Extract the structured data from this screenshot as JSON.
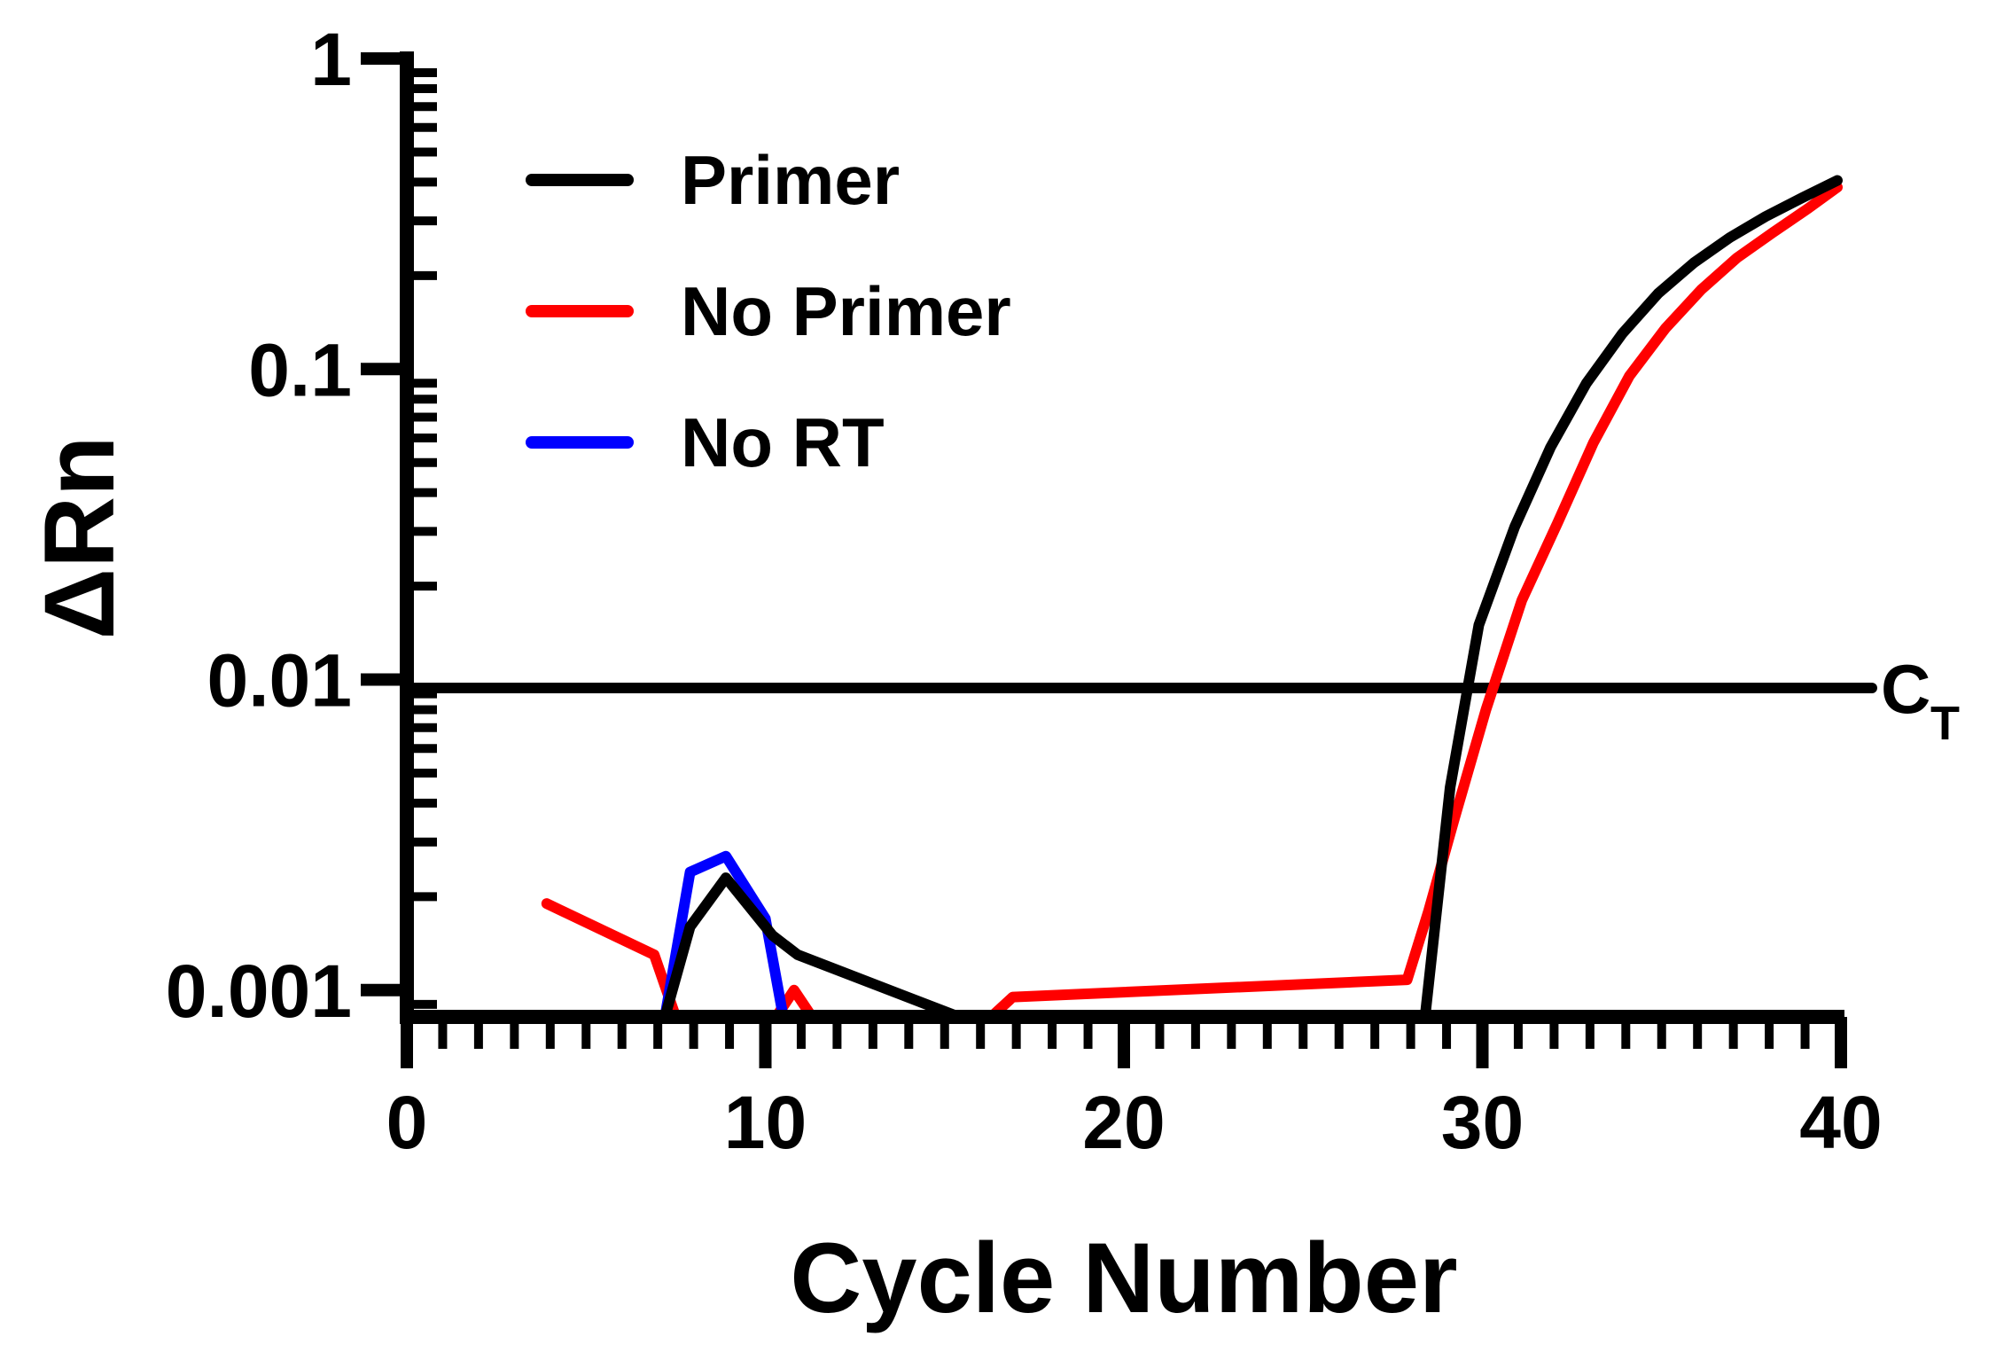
{
  "chart_data": {
    "type": "line",
    "title": "",
    "xlabel": "Cycle Number",
    "ylabel": "ΔRn",
    "x_scale": "linear",
    "y_scale": "log",
    "xlim": [
      0,
      40
    ],
    "ylim": [
      0.00082,
      1
    ],
    "x_ticks": [
      0,
      10,
      20,
      30,
      40
    ],
    "x_tick_labels": [
      "0",
      "10",
      "20",
      "30",
      "40"
    ],
    "y_ticks": [
      0.001,
      0.01,
      0.1,
      1
    ],
    "y_tick_labels": [
      "0.001",
      "0.01",
      "0.1",
      "1"
    ],
    "grid": false,
    "legend_position": "top-left",
    "series": [
      {
        "name": "Primer",
        "color": "#000000",
        "points": [
          [
            7.2,
            0.00082
          ],
          [
            7.9,
            0.0016
          ],
          [
            8.9,
            0.0023
          ],
          [
            10.2,
            0.0015
          ],
          [
            10.9,
            0.0013
          ],
          [
            15.4,
            0.00082
          ],
          [
            28.4,
            0.00082
          ],
          [
            29.1,
            0.0045
          ],
          [
            29.9,
            0.015
          ],
          [
            30.9,
            0.031
          ],
          [
            31.9,
            0.056
          ],
          [
            32.9,
            0.09
          ],
          [
            33.9,
            0.13
          ],
          [
            34.9,
            0.175
          ],
          [
            35.9,
            0.22
          ],
          [
            36.9,
            0.265
          ],
          [
            37.9,
            0.31
          ],
          [
            38.9,
            0.355
          ],
          [
            39.9,
            0.405
          ]
        ]
      },
      {
        "name": "No Primer",
        "color": "#ff0000",
        "points": [
          [
            3.9,
            0.0019
          ],
          [
            6.9,
            0.0013
          ],
          [
            7.5,
            0.00082
          ],
          null,
          [
            10.3,
            0.00082
          ],
          [
            10.8,
            0.001
          ],
          [
            11.3,
            0.00082
          ],
          null,
          [
            16.3,
            0.00082
          ],
          [
            16.9,
            0.00095
          ],
          [
            27.9,
            0.00108
          ],
          [
            28.5,
            0.0018
          ],
          [
            29.2,
            0.0035
          ],
          [
            30.1,
            0.008
          ],
          [
            31.1,
            0.018
          ],
          [
            32.1,
            0.032
          ],
          [
            33.1,
            0.058
          ],
          [
            34.1,
            0.095
          ],
          [
            35.1,
            0.135
          ],
          [
            36.1,
            0.18
          ],
          [
            37.1,
            0.228
          ],
          [
            38.1,
            0.275
          ],
          [
            39.1,
            0.33
          ],
          [
            39.9,
            0.385
          ]
        ]
      },
      {
        "name": "No RT",
        "color": "#0000ff",
        "points": [
          [
            7.2,
            0.00082
          ],
          [
            7.9,
            0.0024
          ],
          [
            8.9,
            0.0027
          ],
          [
            10.0,
            0.0017
          ],
          [
            10.5,
            0.00082
          ]
        ]
      }
    ],
    "reference_line": {
      "label": "C",
      "label_subscript": "T",
      "y": 0.0094,
      "color": "#000000"
    }
  }
}
